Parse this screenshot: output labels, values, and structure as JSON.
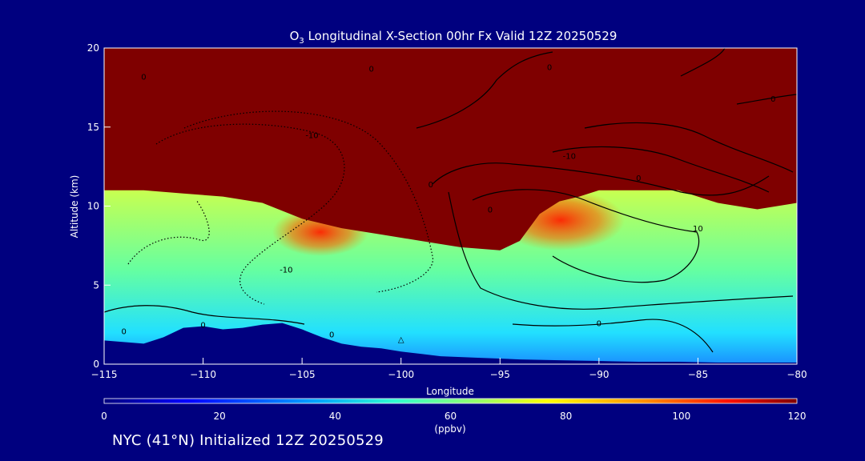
{
  "chart_data": {
    "type": "heatmap",
    "title_prefix": "O",
    "title_sub": "3",
    "title_rest": " Longitudinal X-Section 00hr  Fx Valid 12Z 20250529",
    "xlabel": "Longitude",
    "ylabel": "Altitude (km)",
    "xlim": [
      -115,
      -80
    ],
    "ylim": [
      0,
      20
    ],
    "x_ticks": [
      -115,
      -110,
      -105,
      -100,
      -95,
      -90,
      -85,
      -80
    ],
    "x_tick_labels": [
      "−115",
      "−110",
      "−105",
      "−100",
      "−95",
      "−90",
      "−85",
      "−80"
    ],
    "y_ticks": [
      0,
      5,
      10,
      15,
      20
    ],
    "y_tick_labels": [
      "0",
      "5",
      "10",
      "15",
      "20"
    ],
    "colorbar": {
      "ticks": [
        0,
        20,
        40,
        60,
        80,
        100,
        120
      ],
      "tick_labels": [
        "0",
        "20",
        "40",
        "60",
        "80",
        "100",
        "120"
      ],
      "unit": "(ppbv)",
      "range": [
        0,
        120
      ]
    },
    "ozone_top_boundary": [
      [
        -115,
        11.0
      ],
      [
        -113,
        11.0
      ],
      [
        -111,
        10.8
      ],
      [
        -109,
        10.6
      ],
      [
        -107,
        10.2
      ],
      [
        -105,
        9.2
      ],
      [
        -103,
        8.6
      ],
      [
        -101,
        8.2
      ],
      [
        -99,
        7.8
      ],
      [
        -97,
        7.4
      ],
      [
        -95,
        7.2
      ],
      [
        -94,
        7.8
      ],
      [
        -93,
        9.5
      ],
      [
        -92,
        10.3
      ],
      [
        -91,
        10.6
      ],
      [
        -90,
        11.0
      ],
      [
        -88,
        11.0
      ],
      [
        -86,
        11.0
      ],
      [
        -84,
        10.2
      ],
      [
        -82,
        9.8
      ],
      [
        -80,
        10.2
      ]
    ],
    "terrain_top": [
      [
        -115,
        1.5
      ],
      [
        -113,
        1.3
      ],
      [
        -112,
        1.7
      ],
      [
        -111,
        2.3
      ],
      [
        -110,
        2.4
      ],
      [
        -109,
        2.2
      ],
      [
        -108,
        2.3
      ],
      [
        -107,
        2.5
      ],
      [
        -106,
        2.6
      ],
      [
        -105,
        2.2
      ],
      [
        -104,
        1.7
      ],
      [
        -103,
        1.3
      ],
      [
        -102,
        1.1
      ],
      [
        -101,
        1.0
      ],
      [
        -100,
        0.8
      ],
      [
        -99,
        0.65
      ],
      [
        -98,
        0.5
      ],
      [
        -96,
        0.4
      ],
      [
        -94,
        0.3
      ],
      [
        -92,
        0.25
      ],
      [
        -90,
        0.2
      ],
      [
        -88,
        0.15
      ],
      [
        -86,
        0.15
      ],
      [
        -84,
        0.1
      ],
      [
        -82,
        0.1
      ],
      [
        -80,
        0.1
      ]
    ],
    "contour_labels": [
      {
        "x": -113.0,
        "y": 18.0,
        "text": "0"
      },
      {
        "x": -101.5,
        "y": 18.5,
        "text": "0"
      },
      {
        "x": -104.5,
        "y": 14.3,
        "text": "-10"
      },
      {
        "x": -105.8,
        "y": 5.8,
        "text": "-10"
      },
      {
        "x": -91.5,
        "y": 13.0,
        "text": "-10"
      },
      {
        "x": -98.5,
        "y": 11.2,
        "text": "0"
      },
      {
        "x": -95.5,
        "y": 9.6,
        "text": "0"
      },
      {
        "x": -88.0,
        "y": 11.6,
        "text": "0"
      },
      {
        "x": -85.0,
        "y": 8.4,
        "text": "10"
      },
      {
        "x": -90.0,
        "y": 2.4,
        "text": "0"
      },
      {
        "x": -110.0,
        "y": 2.3,
        "text": "0"
      },
      {
        "x": -114.0,
        "y": 1.9,
        "text": "0"
      },
      {
        "x": -103.5,
        "y": 1.7,
        "text": "0"
      },
      {
        "x": -92.5,
        "y": 18.6,
        "text": "0"
      },
      {
        "x": -81.2,
        "y": 16.6,
        "text": "0"
      },
      {
        "x": -100.0,
        "y": 1.4,
        "text": "△"
      }
    ],
    "grid": false,
    "legend": "none"
  },
  "footer": {
    "text": "NYC (41°N) Initialized 12Z 20250529"
  },
  "colors": {
    "background": "#00007f",
    "axis": "#ffffff",
    "ozone_high": "#7f0000",
    "terrain": "#00007f"
  }
}
